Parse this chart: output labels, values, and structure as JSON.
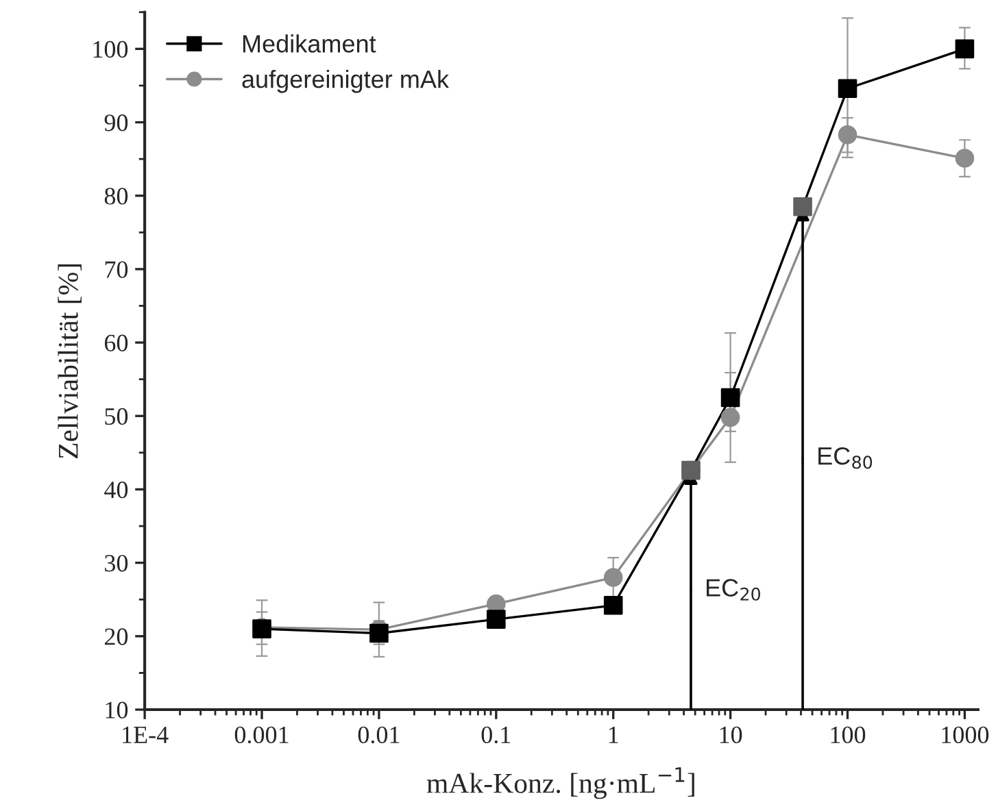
{
  "chart_data": {
    "type": "line",
    "xlabel": "mAk-Konz. [ng·mL$^{−1}$]",
    "ylabel": "Zellviabilität [%]",
    "log": "x",
    "xlim": [
      0.0001,
      1300
    ],
    "xticks": [
      {
        "value": 0.0001,
        "label": "1E-4"
      },
      0.001,
      0.01,
      0.1,
      1,
      10,
      100,
      1000
    ],
    "ylim": [
      10,
      105
    ],
    "yticks": [
      10,
      20,
      30,
      40,
      50,
      60,
      70,
      80,
      90,
      100
    ],
    "grid": false,
    "legend": "top left",
    "line_style": "solid",
    "series": [
      {
        "name": "Medikament",
        "color": "#000000",
        "marker": "square",
        "x": [
          0.001,
          0.01,
          0.1,
          1,
          4.6,
          10,
          41.4,
          100,
          1000
        ],
        "values": [
          21.0,
          20.4,
          22.3,
          24.2,
          42.6,
          52.5,
          78.5,
          94.6,
          100.0
        ],
        "colors": [
          "#000000",
          "#000000",
          "#000000",
          "#000000",
          "#606060",
          "#000000",
          "#606060",
          "#000000",
          "#000000"
        ],
        "errors": [
          [
            18.9,
            23.3
          ],
          [
            18.9,
            22.1
          ],
          null,
          null,
          null,
          [
            47.9,
            61.3
          ],
          null,
          [
            85.2,
            104.2
          ],
          [
            97.3,
            102.9
          ]
        ]
      },
      {
        "name": "aufgereinigter mAk",
        "color": "#8c8c8c",
        "marker": "circle",
        "x": [
          0.001,
          0.01,
          0.1,
          1,
          4.6,
          10,
          100,
          1000
        ],
        "values": [
          21.2,
          20.9,
          24.4,
          28.0,
          42.6,
          49.8,
          88.3,
          85.1
        ],
        "errors": [
          [
            17.3,
            24.9
          ],
          [
            17.2,
            24.6
          ],
          [
            23.5,
            25.3
          ],
          [
            25.2,
            30.7
          ],
          null,
          [
            43.7,
            55.9
          ],
          [
            85.9,
            90.6
          ],
          [
            82.6,
            87.6
          ]
        ]
      }
    ],
    "annotations": [
      {
        "text": "EC$_{20}$",
        "x": 4.6,
        "y": 42.6
      },
      {
        "text": "EC$_{80}$",
        "x": 41.4,
        "y": 78.5
      }
    ]
  }
}
